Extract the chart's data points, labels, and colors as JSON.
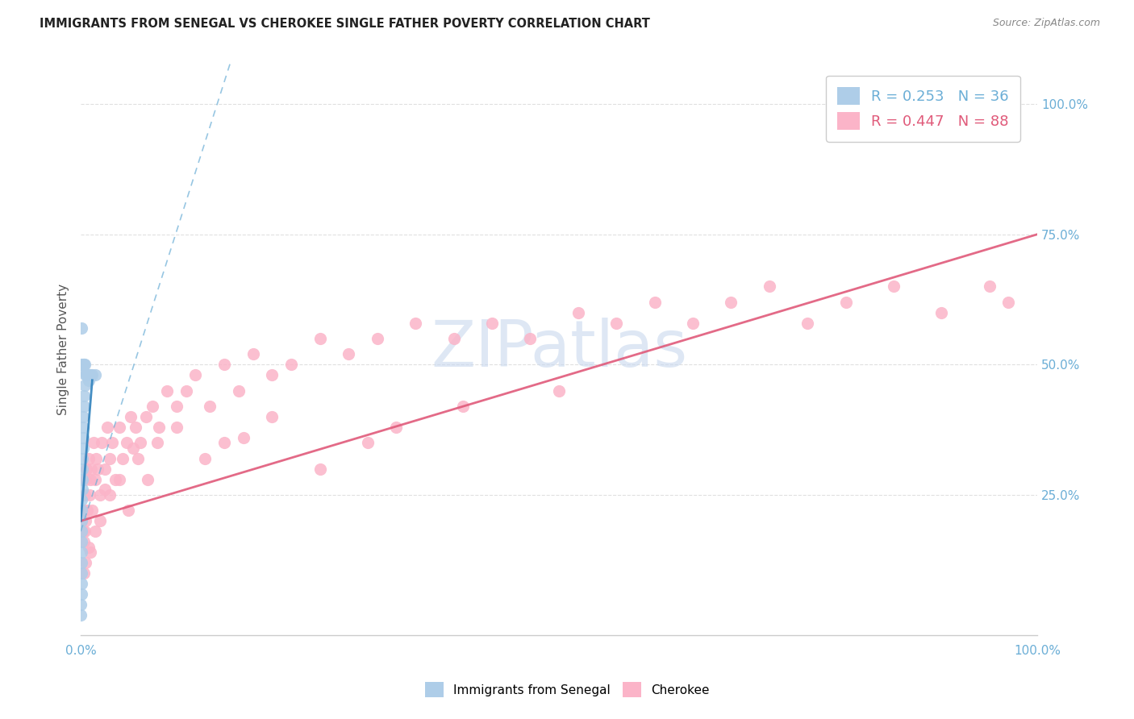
{
  "title": "IMMIGRANTS FROM SENEGAL VS CHEROKEE SINGLE FATHER POVERTY CORRELATION CHART",
  "source": "Source: ZipAtlas.com",
  "ylabel": "Single Father Poverty",
  "legend_label1": "Immigrants from Senegal",
  "legend_label2": "Cherokee",
  "legend_r1": "R = 0.253",
  "legend_n1": "N = 36",
  "legend_r2": "R = 0.447",
  "legend_n2": "N = 88",
  "blue_color": "#aecde8",
  "blue_line_color": "#6baed6",
  "blue_solid_line_color": "#3182bd",
  "pink_color": "#fbb4c8",
  "pink_line_color": "#e05a7a",
  "watermark": "ZIPatlas",
  "watermark_color": "#c8d8ee",
  "grid_color": "#e0e0e0",
  "axis_color": "#cccccc",
  "label_color": "#6baed6",
  "right_label_color": "#6baed6",
  "figsize": [
    14.06,
    8.92
  ],
  "dpi": 100,
  "xlim": [
    0.0,
    1.0
  ],
  "ylim": [
    -0.02,
    1.08
  ],
  "blue_N": 36,
  "pink_N": 88,
  "blue_R": 0.253,
  "pink_R": 0.447,
  "blue_scatter_x": [
    0.0002,
    0.0003,
    0.0004,
    0.0004,
    0.0005,
    0.0005,
    0.0006,
    0.0007,
    0.0008,
    0.0009,
    0.001,
    0.001,
    0.0012,
    0.0013,
    0.0015,
    0.0015,
    0.002,
    0.002,
    0.002,
    0.002,
    0.003,
    0.003,
    0.004,
    0.005,
    0.006,
    0.008,
    0.009,
    0.01,
    0.012,
    0.015,
    0.0005,
    0.001,
    0.0015,
    0.002,
    0.003,
    0.004
  ],
  "blue_scatter_y": [
    0.02,
    0.04,
    0.06,
    0.08,
    0.1,
    0.12,
    0.14,
    0.16,
    0.18,
    0.2,
    0.22,
    0.24,
    0.26,
    0.28,
    0.3,
    0.32,
    0.34,
    0.36,
    0.38,
    0.4,
    0.42,
    0.44,
    0.46,
    0.48,
    0.48,
    0.47,
    0.48,
    0.48,
    0.48,
    0.48,
    0.57,
    0.5,
    0.49,
    0.5,
    0.5,
    0.5
  ],
  "pink_scatter_x": [
    0.001,
    0.002,
    0.003,
    0.003,
    0.004,
    0.004,
    0.005,
    0.005,
    0.006,
    0.007,
    0.008,
    0.009,
    0.01,
    0.011,
    0.012,
    0.013,
    0.015,
    0.016,
    0.018,
    0.02,
    0.022,
    0.025,
    0.028,
    0.03,
    0.033,
    0.036,
    0.04,
    0.044,
    0.048,
    0.052,
    0.057,
    0.062,
    0.068,
    0.075,
    0.082,
    0.09,
    0.1,
    0.11,
    0.12,
    0.135,
    0.15,
    0.165,
    0.18,
    0.2,
    0.22,
    0.25,
    0.28,
    0.31,
    0.35,
    0.39,
    0.43,
    0.47,
    0.52,
    0.56,
    0.6,
    0.64,
    0.68,
    0.72,
    0.76,
    0.8,
    0.85,
    0.9,
    0.95,
    0.97,
    0.003,
    0.005,
    0.008,
    0.01,
    0.015,
    0.02,
    0.03,
    0.04,
    0.06,
    0.08,
    0.1,
    0.15,
    0.2,
    0.3,
    0.4,
    0.5,
    0.05,
    0.025,
    0.07,
    0.13,
    0.17,
    0.25,
    0.33,
    0.055
  ],
  "pink_scatter_y": [
    0.2,
    0.18,
    0.22,
    0.16,
    0.25,
    0.18,
    0.28,
    0.2,
    0.3,
    0.22,
    0.32,
    0.25,
    0.28,
    0.3,
    0.22,
    0.35,
    0.28,
    0.32,
    0.3,
    0.25,
    0.35,
    0.3,
    0.38,
    0.32,
    0.35,
    0.28,
    0.38,
    0.32,
    0.35,
    0.4,
    0.38,
    0.35,
    0.4,
    0.42,
    0.38,
    0.45,
    0.42,
    0.45,
    0.48,
    0.42,
    0.5,
    0.45,
    0.52,
    0.48,
    0.5,
    0.55,
    0.52,
    0.55,
    0.58,
    0.55,
    0.58,
    0.55,
    0.6,
    0.58,
    0.62,
    0.58,
    0.62,
    0.65,
    0.58,
    0.62,
    0.65,
    0.6,
    0.65,
    0.62,
    0.1,
    0.12,
    0.15,
    0.14,
    0.18,
    0.2,
    0.25,
    0.28,
    0.32,
    0.35,
    0.38,
    0.35,
    0.4,
    0.35,
    0.42,
    0.45,
    0.22,
    0.26,
    0.28,
    0.32,
    0.36,
    0.3,
    0.38,
    0.34
  ]
}
